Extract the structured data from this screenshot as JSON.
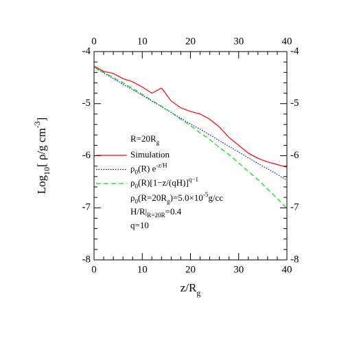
{
  "chart_data": {
    "type": "line",
    "x_label": [
      {
        "text": "z/R"
      },
      {
        "text": "g",
        "shift": "sub"
      }
    ],
    "y_label": [
      {
        "text": "Log"
      },
      {
        "text": "10",
        "shift": "sub"
      },
      {
        "text": "[ ρ/g cm"
      },
      {
        "text": "-3",
        "shift": "sup"
      },
      {
        "text": "]"
      }
    ],
    "x": [
      0,
      2,
      4,
      6,
      8,
      10,
      12,
      14,
      16,
      18,
      20,
      22,
      24,
      26,
      28,
      30,
      32,
      34,
      36,
      38,
      40
    ],
    "series": [
      {
        "name": [
          {
            "text": "Simulation"
          }
        ],
        "color": "#ff0000",
        "dash": "solid",
        "values": [
          -4.28,
          -4.38,
          -4.42,
          -4.52,
          -4.58,
          -4.68,
          -4.8,
          -4.7,
          -4.95,
          -5.08,
          -5.15,
          -5.2,
          -5.3,
          -5.45,
          -5.65,
          -5.8,
          -5.95,
          -6.05,
          -6.12,
          -6.17,
          -6.22
        ]
      },
      {
        "name": [
          {
            "text": "ρ"
          },
          {
            "text": "0",
            "shift": "sub"
          },
          {
            "text": "(R) e"
          },
          {
            "text": "-z/H",
            "shift": "sup"
          }
        ],
        "color": "#0000ff",
        "dash": "dotted",
        "values": [
          -4.3,
          -4.41,
          -4.52,
          -4.63,
          -4.73,
          -4.84,
          -4.95,
          -5.06,
          -5.17,
          -5.28,
          -5.39,
          -5.49,
          -5.6,
          -5.71,
          -5.82,
          -5.93,
          -6.04,
          -6.15,
          -6.25,
          -6.36,
          -6.47
        ]
      },
      {
        "name": [
          {
            "text": "ρ"
          },
          {
            "text": "0",
            "shift": "sub"
          },
          {
            "text": "(R)[1−z/(qH)]"
          },
          {
            "text": "q−1",
            "shift": "sup"
          }
        ],
        "color": "#00dd00",
        "dash": "dashed",
        "values": [
          -4.3,
          -4.4,
          -4.5,
          -4.6,
          -4.71,
          -4.82,
          -4.94,
          -5.05,
          -5.17,
          -5.3,
          -5.42,
          -5.56,
          -5.69,
          -5.84,
          -5.98,
          -6.14,
          -6.3,
          -6.46,
          -6.64,
          -6.82,
          -7.01
        ]
      }
    ],
    "legend_title": [
      {
        "text": "R=20R"
      },
      {
        "text": "g",
        "shift": "sub"
      }
    ],
    "annotations": [
      [
        {
          "text": "ρ"
        },
        {
          "text": "0",
          "shift": "sub"
        },
        {
          "text": "(R=20R"
        },
        {
          "text": "g",
          "shift": "sub"
        },
        {
          "text": ")=5.0×10"
        },
        {
          "text": "-5",
          "shift": "sup"
        },
        {
          "text": "g/cc"
        }
      ],
      [
        {
          "text": "H/R|"
        },
        {
          "text": "R=20R",
          "shift": "sub"
        },
        {
          "text": "=0.4"
        }
      ],
      [
        {
          "text": "q=10"
        }
      ]
    ],
    "xlim": [
      0,
      40
    ],
    "ylim": [
      -8,
      -4
    ],
    "xticks": [
      0,
      10,
      20,
      30,
      40
    ],
    "yticks": [
      -4,
      -5,
      -6,
      -7,
      -8
    ],
    "mirror_axes": true
  }
}
